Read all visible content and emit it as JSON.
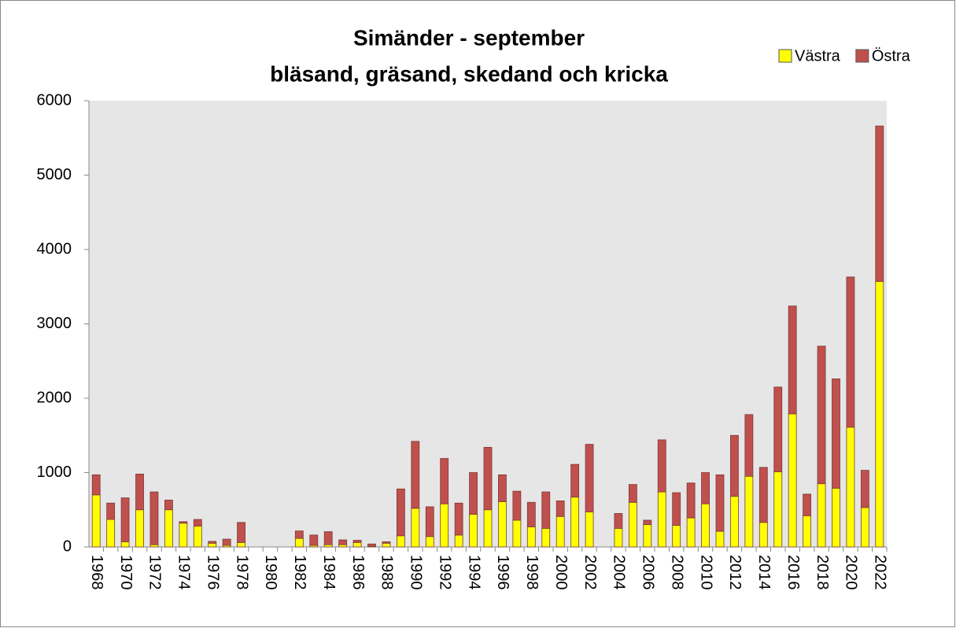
{
  "chart_data": {
    "type": "stacked_bar",
    "title": [
      "Simänder - september",
      "bläsand,  gräsand,  skedand och  kricka"
    ],
    "categories": [
      1968,
      null,
      1970,
      null,
      1972,
      null,
      1974,
      null,
      1976,
      null,
      1978,
      null,
      1980,
      null,
      1982,
      null,
      1984,
      null,
      1986,
      null,
      1988,
      null,
      1990,
      null,
      1992,
      null,
      1994,
      null,
      1996,
      null,
      1998,
      null,
      2000,
      null,
      2002,
      null,
      2004,
      null,
      2006,
      null,
      2008,
      null,
      2010,
      null,
      2012,
      null,
      2014,
      null,
      2016,
      null,
      2018,
      null,
      2020,
      null,
      2022
    ],
    "series": [
      {
        "name": "Västra",
        "color": "#ffff00",
        "values": [
          700,
          370,
          70,
          500,
          30,
          500,
          320,
          280,
          50,
          20,
          60,
          0,
          0,
          0,
          115,
          20,
          30,
          30,
          60,
          10,
          50,
          150,
          520,
          140,
          580,
          160,
          440,
          500,
          610,
          360,
          270,
          250,
          410,
          670,
          470,
          0,
          250,
          600,
          300,
          740,
          290,
          390,
          580,
          210,
          680,
          950,
          330,
          1010,
          1790,
          420,
          850,
          790,
          1610,
          530,
          3570
        ]
      },
      {
        "name": "Östra",
        "color": "#c0504d",
        "values": [
          270,
          220,
          590,
          480,
          710,
          130,
          20,
          90,
          25,
          85,
          270,
          0,
          0,
          0,
          100,
          140,
          175,
          65,
          30,
          30,
          20,
          630,
          900,
          400,
          610,
          430,
          560,
          840,
          360,
          390,
          330,
          490,
          210,
          440,
          910,
          0,
          200,
          240,
          60,
          700,
          440,
          470,
          420,
          760,
          820,
          830,
          740,
          1140,
          1450,
          290,
          1850,
          1470,
          2020,
          500,
          2090
        ]
      }
    ],
    "ylim": [
      0,
      6000
    ],
    "yticks": [
      0,
      1000,
      2000,
      3000,
      4000,
      5000,
      6000
    ],
    "legend": "top-right",
    "plot_background": "#e6e6e6"
  }
}
